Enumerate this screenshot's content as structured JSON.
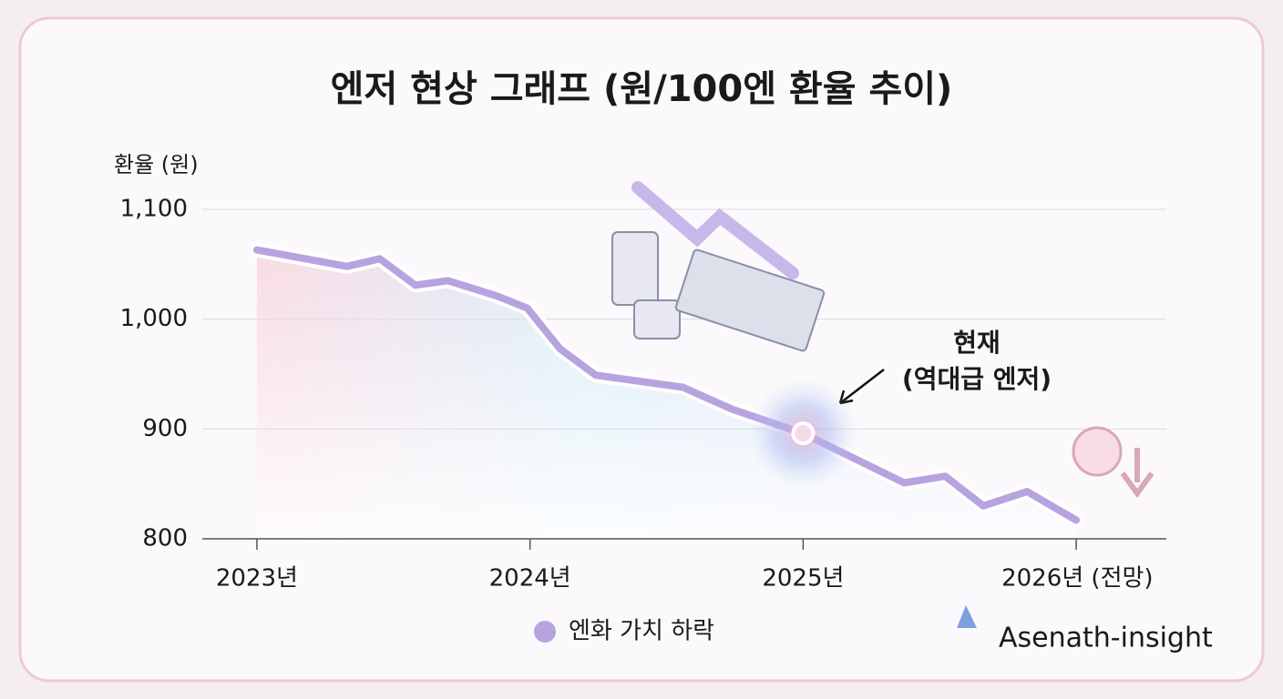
{
  "chart_data": {
    "type": "line",
    "title": "엔저 현상 그래프 (원/100엔 환율 추이)",
    "y_label": "환율 (원)",
    "x": [
      2023.0,
      2023.33,
      2023.45,
      2023.58,
      2023.7,
      2023.88,
      2023.99,
      2024.11,
      2024.24,
      2024.56,
      2024.74,
      2025.0,
      2025.37,
      2025.52,
      2025.66,
      2025.82,
      2026.0
    ],
    "series": [
      {
        "name": "엔화 가치 하락",
        "color": "#b7a3e0",
        "values": [
          1063,
          1048,
          1055,
          1031,
          1035,
          1021,
          1010,
          973,
          949,
          938,
          918,
          896,
          851,
          857,
          830,
          843,
          817
        ]
      }
    ],
    "xlim": [
      2022.8,
      2026.33
    ],
    "xticks": [
      {
        "value": 2023,
        "label": "2023년"
      },
      {
        "value": 2024,
        "label": "2024년"
      },
      {
        "value": 2025,
        "label": "2025년"
      },
      {
        "value": 2026,
        "label": "2026년 (전망)"
      }
    ],
    "ylim": [
      800,
      1100
    ],
    "yticks": [
      800,
      900,
      {
        "value": 1000,
        "label": "1,000"
      },
      {
        "value": 1100,
        "label": "1,100"
      }
    ],
    "grid": true,
    "annotation": {
      "lines": [
        "현재",
        "(역대급 엔저)"
      ]
    },
    "watermark": "Asenath-insight"
  }
}
